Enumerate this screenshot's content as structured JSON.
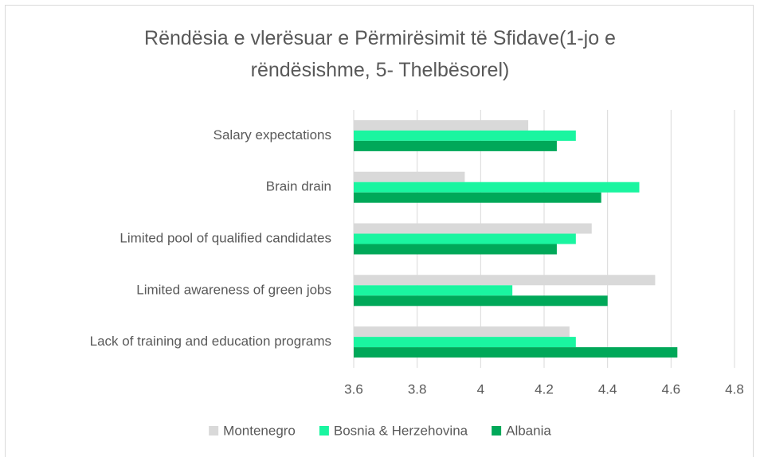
{
  "chart_data": {
    "type": "hbar",
    "title": "Rëndësia e vlerësuar e Përmirësimit të Sfidave(1-jo e rëndësishme, 5- Thelbësorel)",
    "categories": [
      "Salary expectations",
      "Brain drain",
      "Limited pool of qualified candidates",
      "Limited awareness of green jobs",
      "Lack of training and education programs"
    ],
    "series": [
      {
        "name": "Montenegro",
        "color": "#d9d9d9",
        "values": [
          4.15,
          3.95,
          4.35,
          4.55,
          4.28
        ]
      },
      {
        "name": "Bosnia & Herzehovina",
        "color": "#1af5a0",
        "values": [
          4.3,
          4.5,
          4.3,
          4.1,
          4.3
        ]
      },
      {
        "name": "Albania",
        "color": "#00a859",
        "values": [
          4.24,
          4.38,
          4.24,
          4.4,
          4.62
        ]
      }
    ],
    "xlim": [
      3.6,
      4.8
    ],
    "xticks": [
      3.6,
      3.8,
      4,
      4.2,
      4.4,
      4.6,
      4.8
    ],
    "grid": true,
    "legend": "bottom"
  }
}
